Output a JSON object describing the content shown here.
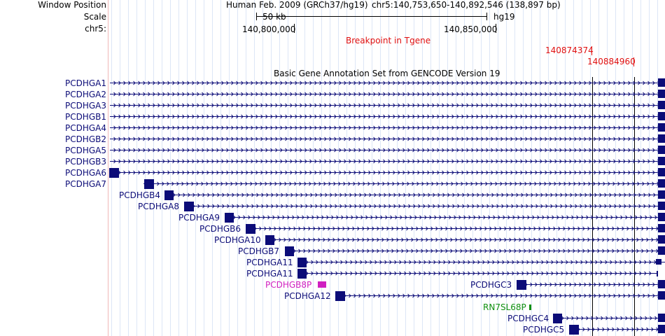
{
  "header": {
    "window_position_label": "Window Position",
    "scale_label": "Scale",
    "chrom_label": "chr5:",
    "assembly": "Human Feb. 2009 (GRCh37/hg19)",
    "position": "chr5:140,753,650-140,892,546 (138,897 bp)",
    "scale_text": "50 kb",
    "db": "hg19",
    "tick_1": "140,800,000",
    "tick_2": "140,850,000"
  },
  "custom_track": {
    "title": "Breakpoint in Tgene",
    "marker_1": "140874374",
    "marker_2": "140884960",
    "color": "#e01010"
  },
  "gene_track": {
    "title": "Basic Gene Annotation Set from GENCODE Version 19",
    "gene_color": "#0c0c78",
    "pseudo_color": "#d020c0",
    "rna_color": "#109010",
    "left_labels": [
      "PCDHGA1",
      "PCDHGA2",
      "PCDHGA3",
      "PCDHGB1",
      "PCDHGA4",
      "PCDHGB2",
      "PCDHGA5",
      "PCDHGB3",
      "PCDHGA6",
      "PCDHGA7"
    ],
    "inline_labels": [
      {
        "name": "PCDHGB4",
        "kind": "gene"
      },
      {
        "name": "PCDHGA8",
        "kind": "gene"
      },
      {
        "name": "PCDHGA9",
        "kind": "gene"
      },
      {
        "name": "PCDHGB6",
        "kind": "gene"
      },
      {
        "name": "PCDHGA10",
        "kind": "gene"
      },
      {
        "name": "PCDHGB7",
        "kind": "gene"
      },
      {
        "name": "PCDHGA11",
        "kind": "gene"
      },
      {
        "name": "PCDHGA11",
        "kind": "gene"
      },
      {
        "name": "PCDHGB8P",
        "kind": "pseudo"
      },
      {
        "name": "PCDHGC3",
        "kind": "gene"
      },
      {
        "name": "PCDHGA12",
        "kind": "gene"
      },
      {
        "name": "RN7SL68P",
        "kind": "rna"
      },
      {
        "name": "PCDHGC4",
        "kind": "gene"
      },
      {
        "name": "PCDHGC5",
        "kind": "gene"
      }
    ]
  }
}
